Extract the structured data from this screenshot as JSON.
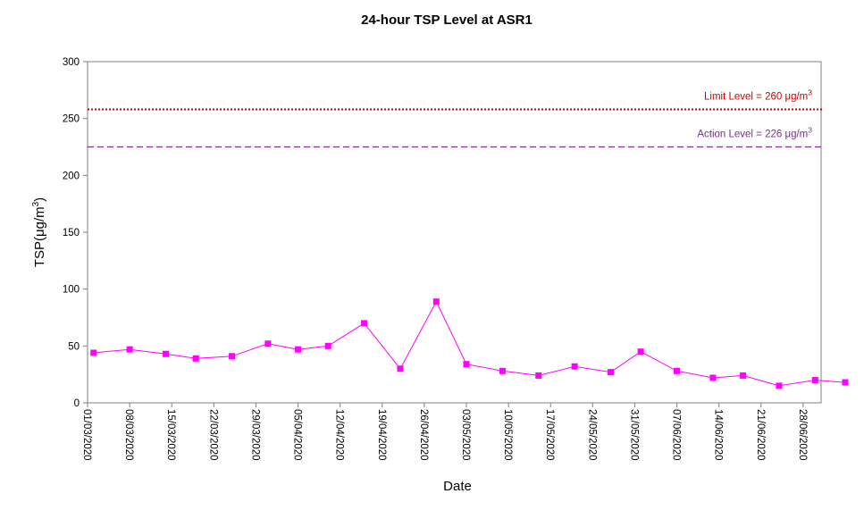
{
  "chart_data": {
    "type": "line",
    "title": "24-hour TSP Level at ASR1",
    "xlabel": "Date",
    "ylabel": "TSP(μg/m3)",
    "ylabel_main": "TSP(",
    "ylabel_unit": "μg/m",
    "ylabel_sup": "3",
    "ylabel_close": ")",
    "ylim": [
      0,
      300
    ],
    "yticks": [
      0,
      50,
      100,
      150,
      200,
      250,
      300
    ],
    "xlim": [
      "2020-03-01",
      "2020-06-30"
    ],
    "xticks": [
      "01/03/2020",
      "08/03/2020",
      "15/03/2020",
      "22/03/2020",
      "29/03/2020",
      "05/04/2020",
      "12/04/2020",
      "19/04/2020",
      "26/04/2020",
      "03/05/2020",
      "10/05/2020",
      "17/05/2020",
      "24/05/2020",
      "31/05/2020",
      "07/06/2020",
      "14/06/2020",
      "21/06/2020",
      "28/06/2020"
    ],
    "series": [
      {
        "color": "#ff00ff",
        "marker": "square",
        "points": [
          {
            "x": "2020-03-02",
            "y": 44
          },
          {
            "x": "2020-03-08",
            "y": 47
          },
          {
            "x": "2020-03-14",
            "y": 43
          },
          {
            "x": "2020-03-19",
            "y": 39
          },
          {
            "x": "2020-03-25",
            "y": 41
          },
          {
            "x": "2020-03-31",
            "y": 52
          },
          {
            "x": "2020-04-05",
            "y": 47
          },
          {
            "x": "2020-04-10",
            "y": 50
          },
          {
            "x": "2020-04-16",
            "y": 70
          },
          {
            "x": "2020-04-22",
            "y": 30
          },
          {
            "x": "2020-04-28",
            "y": 89
          },
          {
            "x": "2020-05-03",
            "y": 34
          },
          {
            "x": "2020-05-09",
            "y": 28
          },
          {
            "x": "2020-05-15",
            "y": 24
          },
          {
            "x": "2020-05-21",
            "y": 32
          },
          {
            "x": "2020-05-27",
            "y": 27
          },
          {
            "x": "2020-06-01",
            "y": 45
          },
          {
            "x": "2020-06-07",
            "y": 28
          },
          {
            "x": "2020-06-13",
            "y": 22
          },
          {
            "x": "2020-06-18",
            "y": 24
          },
          {
            "x": "2020-06-24",
            "y": 15
          },
          {
            "x": "2020-06-30",
            "y": 20
          },
          {
            "x": "2020-07-05",
            "y": 18
          }
        ]
      }
    ],
    "reference_lines": [
      {
        "label": "Limit Level  = 260 μg/m3",
        "label_main": "Limit Level  = 260 μg/m",
        "label_sup": "3",
        "value": 260,
        "y_drawn": 258,
        "color": "#cc0000",
        "style": "dotted"
      },
      {
        "label": "Action Level  = 226 μg/m3",
        "label_main": "Action Level  = 226 μg/m",
        "label_sup": "3",
        "value": 226,
        "y_drawn": 225,
        "color": "#7b2d8e",
        "style": "dashed"
      }
    ],
    "grid": false,
    "legend": "none"
  }
}
